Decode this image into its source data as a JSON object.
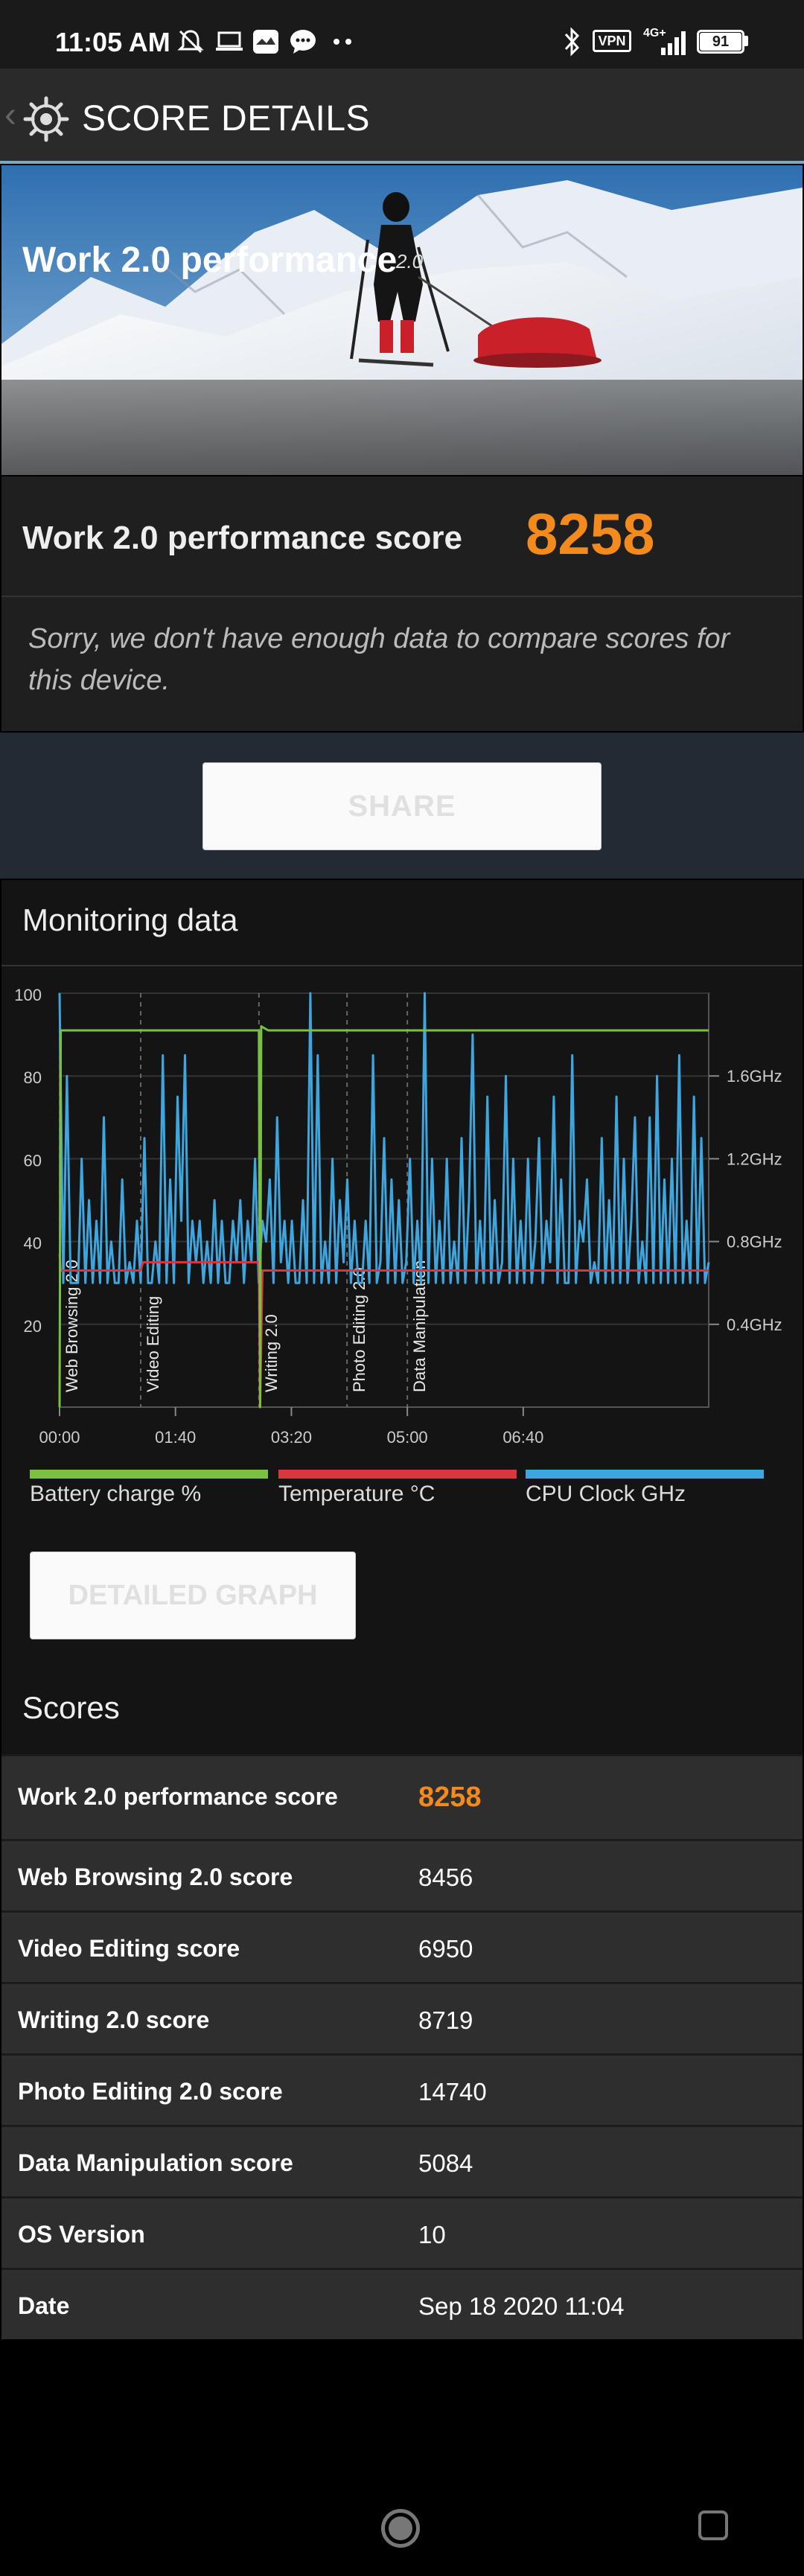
{
  "status_bar": {
    "time": "11:05 AM",
    "vpn": "VPN",
    "network": "4G+",
    "battery": "91"
  },
  "app_bar": {
    "title": "SCORE DETAILS"
  },
  "hero": {
    "title": "Work 2.0 performance",
    "version": "2.0"
  },
  "score": {
    "label": "Work 2.0 performance score",
    "value": "8258",
    "note": "Sorry, we don't have enough data to compare scores for this device."
  },
  "share": {
    "label": "SHARE"
  },
  "monitoring": {
    "title": "Monitoring data",
    "detailed_graph_label": "DETAILED GRAPH",
    "legend": [
      {
        "label": "Battery charge %",
        "color": "#7ac143"
      },
      {
        "label": "Temperature °C",
        "color": "#d9363e"
      },
      {
        "label": "CPU Clock GHz",
        "color": "#3ea6df"
      }
    ]
  },
  "chart_data": {
    "type": "line",
    "x_ticks": [
      "00:00",
      "01:40",
      "03:20",
      "05:00",
      "06:40"
    ],
    "y_ticks_left": [
      "100",
      "80",
      "60",
      "40",
      "20"
    ],
    "y_ticks_right": [
      "1.6GHz",
      "1.2GHz",
      "0.8GHz",
      "0.4GHz"
    ],
    "ylim": [
      0,
      100
    ],
    "xlim_seconds": [
      0,
      560
    ],
    "y2lim_ghz": [
      0,
      2.0
    ],
    "sections": [
      {
        "label": "Web Browsing 2.0",
        "start_seconds": 0
      },
      {
        "label": "Video Editing",
        "start_seconds": 70
      },
      {
        "label": "Writing 2.0",
        "start_seconds": 172
      },
      {
        "label": "Photo Editing 2.0",
        "start_seconds": 248
      },
      {
        "label": "Data Manipulation",
        "start_seconds": 300
      }
    ],
    "series": [
      {
        "name": "Battery charge %",
        "color": "#7ac143",
        "points": [
          [
            0,
            0
          ],
          [
            1,
            91
          ],
          [
            172,
            91
          ],
          [
            173,
            0
          ],
          [
            174,
            92
          ],
          [
            180,
            91
          ],
          [
            560,
            91
          ]
        ]
      },
      {
        "name": "Temperature °C",
        "color": "#d9363e",
        "points": [
          [
            0,
            37
          ],
          [
            1,
            33
          ],
          [
            70,
            33
          ],
          [
            72,
            35
          ],
          [
            172,
            35
          ],
          [
            173,
            0
          ],
          [
            175,
            33
          ],
          [
            560,
            33
          ]
        ]
      },
      {
        "name": "CPU Clock GHz",
        "color": "#3ea6df",
        "values_ghz": [
          2.0,
          0.6,
          1.6,
          0.6,
          0.6,
          0.6,
          1.2,
          0.6,
          1.0,
          0.6,
          0.9,
          0.6,
          1.4,
          0.6,
          0.8,
          0.6,
          0.6,
          1.1,
          0.6,
          0.7,
          0.6,
          0.9,
          0.6,
          1.3,
          0.6,
          0.6,
          0.8,
          0.6,
          1.7,
          0.6,
          1.1,
          0.6,
          1.5,
          0.9,
          1.7,
          0.6,
          0.9,
          0.7,
          0.9,
          0.6,
          0.8,
          0.6,
          1.0,
          0.6,
          0.9,
          0.6,
          0.6,
          0.9,
          0.7,
          1.0,
          0.6,
          0.9,
          0.7,
          1.2,
          0.6,
          0.9,
          0.8,
          1.1,
          0.6,
          1.4,
          0.7,
          0.9,
          0.6,
          0.9,
          0.6,
          0.6,
          1.0,
          0.6,
          2.0,
          0.6,
          1.7,
          0.6,
          0.8,
          0.6,
          1.2,
          0.6,
          1.0,
          0.7,
          1.1,
          0.6,
          0.9,
          0.6,
          0.6,
          0.9,
          0.6,
          1.7,
          0.6,
          0.7,
          1.3,
          0.6,
          1.1,
          0.6,
          1.0,
          0.6,
          0.7,
          1.2,
          0.6,
          0.9,
          0.6,
          2.0,
          0.6,
          1.2,
          0.6,
          0.9,
          0.6,
          1.2,
          0.6,
          0.8,
          0.6,
          1.3,
          0.6,
          1.0,
          1.8,
          0.6,
          0.9,
          0.6,
          1.5,
          0.6,
          1.0,
          0.6,
          0.7,
          1.6,
          0.6,
          1.2,
          0.6,
          0.9,
          0.6,
          1.2,
          0.6,
          0.8,
          1.3,
          0.6,
          0.9,
          0.7,
          1.5,
          0.6,
          1.1,
          0.6,
          0.6,
          1.7,
          0.6,
          0.9,
          0.8,
          1.1,
          0.6,
          0.7,
          0.6,
          1.3,
          0.6,
          1.0,
          0.6,
          1.5,
          0.6,
          1.2,
          0.6,
          0.9,
          1.4,
          0.6,
          0.8,
          0.6,
          1.4,
          0.6,
          1.6,
          0.6,
          1.1,
          0.6,
          1.2,
          0.6,
          1.7,
          0.6,
          0.9,
          0.6,
          1.5,
          0.6,
          1.3,
          0.6,
          0.7
        ]
      }
    ]
  },
  "scores": {
    "title": "Scores",
    "rows": [
      {
        "label": "Work 2.0 performance score",
        "value": "8258",
        "highlight": true
      },
      {
        "label": "Web Browsing 2.0 score",
        "value": "8456"
      },
      {
        "label": "Video Editing score",
        "value": "6950"
      },
      {
        "label": "Writing 2.0 score",
        "value": "8719"
      },
      {
        "label": "Photo Editing 2.0 score",
        "value": "14740"
      },
      {
        "label": "Data Manipulation score",
        "value": "5084"
      },
      {
        "label": "OS Version",
        "value": "10"
      },
      {
        "label": "Date",
        "value": "Sep 18 2020 11:04"
      }
    ]
  }
}
